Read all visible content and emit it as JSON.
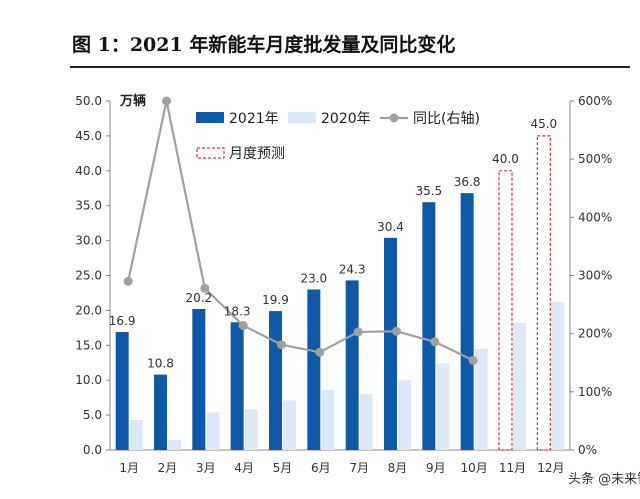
{
  "figure_title": "图 1：2021 年新能车月度批发量及同比变化",
  "watermark": "头条 @未来智库",
  "colors": {
    "bar_2021": "#0f5aa8",
    "bar_2020": "#dce8f5",
    "line_yoy": "#a0a0a0",
    "forecast": "#e03030",
    "axis_text": "#333333"
  },
  "chart_data": {
    "type": "bar",
    "categories": [
      "1月",
      "2月",
      "3月",
      "4月",
      "5月",
      "6月",
      "7月",
      "8月",
      "9月",
      "10月",
      "11月",
      "12月"
    ],
    "series": [
      {
        "name": "2021年",
        "type": "bar",
        "axis": "left",
        "values": [
          16.9,
          10.8,
          20.2,
          18.3,
          19.9,
          23.0,
          24.3,
          30.4,
          35.5,
          36.8,
          null,
          null
        ],
        "labels": [
          "16.9",
          "10.8",
          "20.2",
          "18.3",
          "19.9",
          "23.0",
          "24.3",
          "30.4",
          "35.5",
          "36.8",
          null,
          null
        ]
      },
      {
        "name": "2020年",
        "type": "bar",
        "axis": "left",
        "values": [
          4.3,
          1.4,
          5.4,
          5.8,
          7.1,
          8.6,
          8.0,
          10.0,
          12.4,
          14.5,
          18.2,
          21.2
        ]
      },
      {
        "name": "同比(右轴)",
        "type": "line",
        "axis": "right",
        "values": [
          290,
          600,
          278,
          214,
          181,
          168,
          203,
          204,
          186,
          154,
          null,
          null
        ]
      },
      {
        "name": "月度预测",
        "type": "bar-dashed",
        "axis": "left",
        "values": [
          null,
          null,
          null,
          null,
          null,
          null,
          null,
          null,
          null,
          null,
          40.0,
          45.0
        ],
        "labels": [
          null,
          null,
          null,
          null,
          null,
          null,
          null,
          null,
          null,
          null,
          "40.0",
          "45.0"
        ]
      }
    ],
    "ylabel": "万辆",
    "y_left": {
      "min": 0,
      "max": 50,
      "step": 5,
      "ticks": [
        "0.0",
        "5.0",
        "10.0",
        "15.0",
        "20.0",
        "25.0",
        "30.0",
        "35.0",
        "40.0",
        "45.0",
        "50.0"
      ]
    },
    "y_right": {
      "min": 0,
      "max": 600,
      "step": 100,
      "ticks": [
        "0%",
        "100%",
        "200%",
        "300%",
        "400%",
        "500%",
        "600%"
      ]
    },
    "legend_position": "top",
    "grid": false
  }
}
